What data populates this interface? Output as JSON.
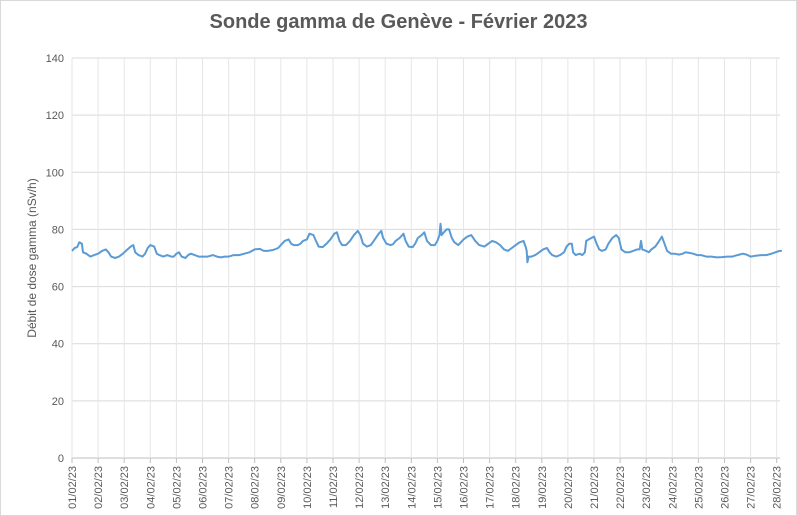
{
  "chart_data": {
    "type": "line",
    "title": "Sonde gamma de Genève - Février 2023",
    "xlabel": "",
    "ylabel": "Débit de dose gamma (nSv/h)",
    "ylim": [
      0,
      140
    ],
    "yticks": [
      0,
      20,
      40,
      60,
      80,
      100,
      120,
      140
    ],
    "grid": true,
    "legend": "none",
    "line_color": "#5b9bd5",
    "categories": [
      "01/02/23",
      "02/02/23",
      "03/02/23",
      "04/02/23",
      "05/02/23",
      "06/02/23",
      "07/02/23",
      "08/02/23",
      "09/02/23",
      "10/02/23",
      "11/02/23",
      "12/02/23",
      "13/02/23",
      "14/02/23",
      "15/02/23",
      "16/02/23",
      "17/02/23",
      "18/02/23",
      "19/02/23",
      "20/02/23",
      "21/02/23",
      "22/02/23",
      "23/02/23",
      "24/02/23",
      "25/02/23",
      "26/02/23",
      "27/02/23",
      "28/02/23"
    ],
    "series": [
      {
        "points": [
          [
            0,
            72.5
          ],
          [
            0.1,
            73.5
          ],
          [
            0.2,
            73.8
          ],
          [
            0.28,
            75.5
          ],
          [
            0.38,
            75
          ],
          [
            0.42,
            72
          ],
          [
            0.55,
            71.5
          ],
          [
            0.7,
            70.5
          ],
          [
            0.85,
            71
          ],
          [
            1.0,
            71.5
          ],
          [
            1.15,
            72.5
          ],
          [
            1.3,
            73
          ],
          [
            1.4,
            72
          ],
          [
            1.5,
            70.5
          ],
          [
            1.65,
            70
          ],
          [
            1.8,
            70.5
          ],
          [
            1.95,
            71.5
          ],
          [
            2.1,
            72.8
          ],
          [
            2.25,
            74
          ],
          [
            2.35,
            74.5
          ],
          [
            2.42,
            72
          ],
          [
            2.55,
            71
          ],
          [
            2.7,
            70.5
          ],
          [
            2.8,
            71.5
          ],
          [
            2.9,
            73.5
          ],
          [
            3.0,
            74.5
          ],
          [
            3.15,
            74
          ],
          [
            3.25,
            71.5
          ],
          [
            3.35,
            71
          ],
          [
            3.5,
            70.5
          ],
          [
            3.65,
            71
          ],
          [
            3.8,
            70.5
          ],
          [
            3.9,
            70.5
          ],
          [
            4.0,
            71.5
          ],
          [
            4.1,
            72
          ],
          [
            4.2,
            70.5
          ],
          [
            4.35,
            70
          ],
          [
            4.45,
            71
          ],
          [
            4.55,
            71.5
          ],
          [
            4.7,
            71
          ],
          [
            4.85,
            70.5
          ],
          [
            5.0,
            70.5
          ],
          [
            5.2,
            70.5
          ],
          [
            5.4,
            71
          ],
          [
            5.55,
            70.5
          ],
          [
            5.7,
            70.2
          ],
          [
            5.85,
            70.5
          ],
          [
            6.0,
            70.5
          ],
          [
            6.2,
            71
          ],
          [
            6.4,
            71
          ],
          [
            6.6,
            71.5
          ],
          [
            6.8,
            72
          ],
          [
            7.0,
            73
          ],
          [
            7.2,
            73.2
          ],
          [
            7.35,
            72.5
          ],
          [
            7.5,
            72.5
          ],
          [
            7.7,
            72.8
          ],
          [
            7.9,
            73.5
          ],
          [
            8.0,
            74.5
          ],
          [
            8.15,
            76
          ],
          [
            8.3,
            76.5
          ],
          [
            8.4,
            75
          ],
          [
            8.5,
            74.5
          ],
          [
            8.65,
            74.5
          ],
          [
            8.75,
            75
          ],
          [
            8.85,
            76
          ],
          [
            9.0,
            76.5
          ],
          [
            9.1,
            78.5
          ],
          [
            9.25,
            78
          ],
          [
            9.35,
            76
          ],
          [
            9.45,
            74
          ],
          [
            9.6,
            73.8
          ],
          [
            9.75,
            75
          ],
          [
            9.9,
            76.5
          ],
          [
            10.05,
            78.5
          ],
          [
            10.15,
            79
          ],
          [
            10.25,
            76
          ],
          [
            10.35,
            74.5
          ],
          [
            10.5,
            74.5
          ],
          [
            10.65,
            76
          ],
          [
            10.8,
            78
          ],
          [
            10.95,
            79.5
          ],
          [
            11.05,
            78
          ],
          [
            11.15,
            75
          ],
          [
            11.3,
            74
          ],
          [
            11.45,
            74.5
          ],
          [
            11.6,
            76.5
          ],
          [
            11.75,
            78.5
          ],
          [
            11.85,
            79.5
          ],
          [
            11.92,
            77
          ],
          [
            12.05,
            75
          ],
          [
            12.2,
            74.5
          ],
          [
            12.3,
            74.8
          ],
          [
            12.4,
            76
          ],
          [
            12.55,
            77
          ],
          [
            12.7,
            78.5
          ],
          [
            12.78,
            76
          ],
          [
            12.9,
            74
          ],
          [
            13.05,
            73.8
          ],
          [
            13.15,
            75
          ],
          [
            13.25,
            77
          ],
          [
            13.4,
            78
          ],
          [
            13.5,
            79
          ],
          [
            13.6,
            76
          ],
          [
            13.75,
            74.5
          ],
          [
            13.9,
            74.5
          ],
          [
            14.0,
            76
          ],
          [
            14.08,
            78
          ],
          [
            14.12,
            82
          ],
          [
            14.16,
            78
          ],
          [
            14.25,
            79
          ],
          [
            14.35,
            80
          ],
          [
            14.45,
            80
          ],
          [
            14.55,
            77
          ],
          [
            14.65,
            75.5
          ],
          [
            14.8,
            74.5
          ],
          [
            14.9,
            75.5
          ],
          [
            15.0,
            76.5
          ],
          [
            15.15,
            77.5
          ],
          [
            15.3,
            78
          ],
          [
            15.45,
            76
          ],
          [
            15.6,
            74.5
          ],
          [
            15.8,
            74
          ],
          [
            15.95,
            75
          ],
          [
            16.1,
            76
          ],
          [
            16.25,
            75.5
          ],
          [
            16.4,
            74.5
          ],
          [
            16.55,
            73
          ],
          [
            16.7,
            72.5
          ],
          [
            16.85,
            73.5
          ],
          [
            17.0,
            74.5
          ],
          [
            17.15,
            75.5
          ],
          [
            17.3,
            76
          ],
          [
            17.38,
            74
          ],
          [
            17.42,
            72.5
          ],
          [
            17.45,
            68.5
          ],
          [
            17.5,
            70.5
          ],
          [
            17.6,
            70.5
          ],
          [
            17.75,
            71
          ],
          [
            17.9,
            72
          ],
          [
            18.05,
            73
          ],
          [
            18.2,
            73.5
          ],
          [
            18.3,
            72
          ],
          [
            18.4,
            71
          ],
          [
            18.55,
            70.5
          ],
          [
            18.7,
            71
          ],
          [
            18.85,
            72
          ],
          [
            18.95,
            74
          ],
          [
            19.05,
            75
          ],
          [
            19.15,
            75
          ],
          [
            19.2,
            72
          ],
          [
            19.3,
            71
          ],
          [
            19.45,
            71.5
          ],
          [
            19.55,
            71
          ],
          [
            19.65,
            72
          ],
          [
            19.7,
            76
          ],
          [
            19.8,
            76.5
          ],
          [
            19.9,
            77
          ],
          [
            20.0,
            77.5
          ],
          [
            20.1,
            75
          ],
          [
            20.2,
            73
          ],
          [
            20.3,
            72.5
          ],
          [
            20.45,
            73
          ],
          [
            20.55,
            75
          ],
          [
            20.7,
            77
          ],
          [
            20.85,
            78
          ],
          [
            20.95,
            77
          ],
          [
            21.05,
            73
          ],
          [
            21.2,
            72
          ],
          [
            21.35,
            72
          ],
          [
            21.5,
            72.5
          ],
          [
            21.65,
            73
          ],
          [
            21.75,
            73
          ],
          [
            21.8,
            76
          ],
          [
            21.85,
            73
          ],
          [
            22.0,
            72.5
          ],
          [
            22.1,
            72
          ],
          [
            22.2,
            73
          ],
          [
            22.35,
            74
          ],
          [
            22.5,
            76
          ],
          [
            22.6,
            77.5
          ],
          [
            22.7,
            75
          ],
          [
            22.8,
            72.5
          ],
          [
            22.95,
            71.5
          ],
          [
            23.1,
            71.5
          ],
          [
            23.25,
            71.2
          ],
          [
            23.4,
            71.5
          ],
          [
            23.5,
            72
          ],
          [
            23.65,
            71.8
          ],
          [
            23.8,
            71.5
          ],
          [
            23.95,
            71
          ],
          [
            24.1,
            71
          ],
          [
            24.3,
            70.5
          ],
          [
            24.5,
            70.5
          ],
          [
            24.7,
            70.2
          ],
          [
            24.9,
            70.3
          ],
          [
            25.1,
            70.5
          ],
          [
            25.3,
            70.5
          ],
          [
            25.5,
            71
          ],
          [
            25.7,
            71.5
          ],
          [
            25.85,
            71.2
          ],
          [
            26.0,
            70.5
          ],
          [
            26.2,
            70.8
          ],
          [
            26.4,
            71
          ],
          [
            26.6,
            71
          ],
          [
            26.8,
            71.5
          ],
          [
            26.95,
            72
          ],
          [
            27.1,
            72.5
          ],
          [
            27.2,
            72.5
          ]
        ]
      }
    ]
  }
}
